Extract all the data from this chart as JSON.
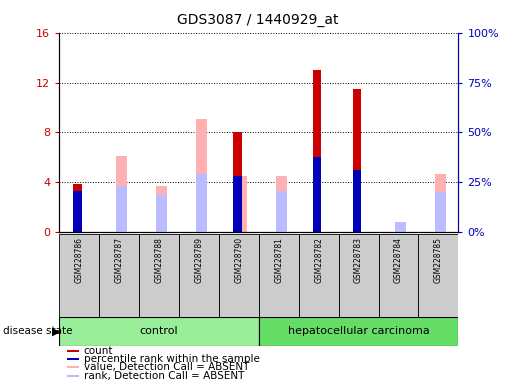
{
  "title": "GDS3087 / 1440929_at",
  "samples": [
    "GSM228786",
    "GSM228787",
    "GSM228788",
    "GSM228789",
    "GSM228790",
    "GSM228781",
    "GSM228782",
    "GSM228783",
    "GSM228784",
    "GSM228785"
  ],
  "groups": [
    "control",
    "control",
    "control",
    "control",
    "control",
    "hepatocellular carcinoma",
    "hepatocellular carcinoma",
    "hepatocellular carcinoma",
    "hepatocellular carcinoma",
    "hepatocellular carcinoma"
  ],
  "count": [
    3.9,
    0,
    0,
    0,
    8.0,
    0,
    13.0,
    11.5,
    0,
    0
  ],
  "percentile_v": [
    3.3,
    0,
    0,
    0,
    4.5,
    0,
    6.0,
    5.0,
    0,
    0
  ],
  "value_absent": [
    0,
    6.1,
    3.7,
    9.1,
    4.5,
    4.5,
    0,
    0,
    0,
    4.7
  ],
  "rank_absent": [
    0,
    3.7,
    3.0,
    4.7,
    0,
    3.3,
    0,
    0,
    0.8,
    3.2
  ],
  "ylim_left": [
    0,
    16
  ],
  "ylim_right": [
    0,
    100
  ],
  "yticks_left": [
    0,
    4,
    8,
    12,
    16
  ],
  "yticks_right": [
    0,
    25,
    50,
    75,
    100
  ],
  "ytick_labels_right": [
    "0%",
    "25%",
    "50%",
    "75%",
    "100%"
  ],
  "color_count": "#cc0000",
  "color_percentile": "#0000bb",
  "color_value_absent": "#ffb0b0",
  "color_rank_absent": "#bbbbff",
  "color_control_bg": "#99ee99",
  "color_cancer_bg": "#66dd66",
  "color_sample_bg": "#cccccc"
}
